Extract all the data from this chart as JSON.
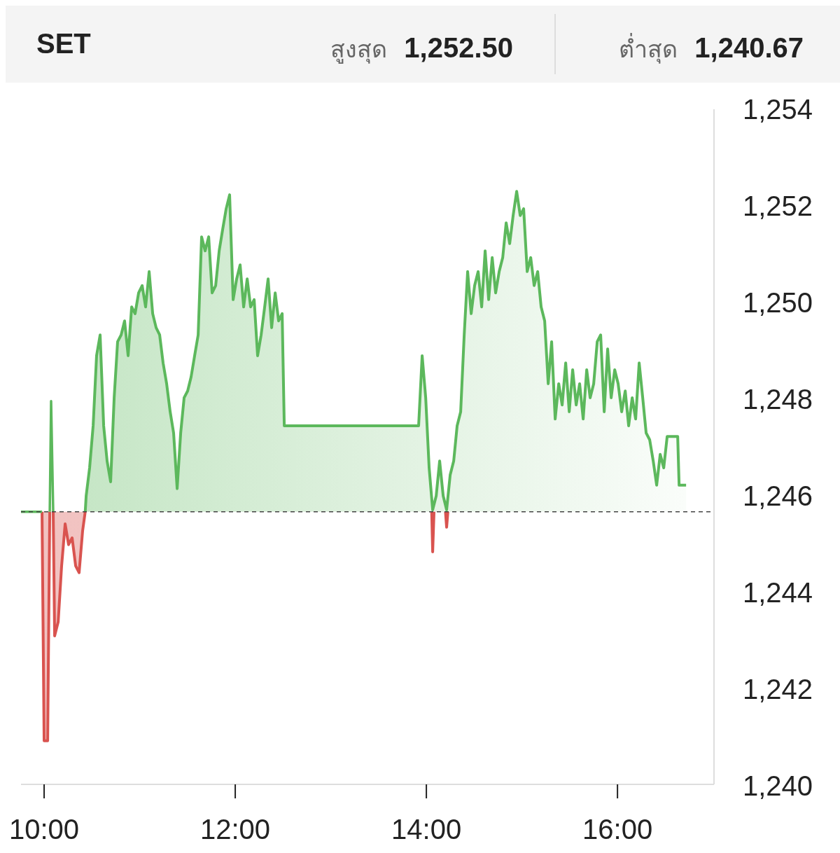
{
  "chart_data": {
    "type": "area",
    "title": "SET",
    "annotations": [
      "สูงสุด 1,252.50",
      "ต่ำสุด 1,240.67"
    ],
    "xlim": [
      9.758,
      17.01
    ],
    "ylim": [
      1240,
      1254
    ],
    "xticks": [
      {
        "value": 10,
        "label": "10:00"
      },
      {
        "value": 12,
        "label": "12:00"
      },
      {
        "value": 14,
        "label": "14:00"
      },
      {
        "value": 16,
        "label": "16:00"
      }
    ],
    "yticks": [
      {
        "value": 1240,
        "label": "1,240"
      },
      {
        "value": 1242,
        "label": "1,242"
      },
      {
        "value": 1244,
        "label": "1,244"
      },
      {
        "value": 1246,
        "label": "1,246"
      },
      {
        "value": 1248,
        "label": "1,248"
      },
      {
        "value": 1250,
        "label": "1,250"
      },
      {
        "value": 1252,
        "label": "1,252"
      },
      {
        "value": 1254,
        "label": "1,254"
      }
    ],
    "ref_lines": [
      {
        "axis": "y",
        "value": 1245.67,
        "color": "#444444",
        "line_style": "dashed"
      }
    ],
    "grid": false,
    "series": [
      {
        "color": "#d9534f",
        "x": [
          9.978,
          10.0,
          10.037,
          10.059,
          10.08,
          10.095,
          10.11,
          10.147,
          10.183,
          10.22,
          10.256,
          10.293,
          10.33,
          10.366,
          10.403,
          10.43,
          14.0,
          14.056,
          14.066,
          14.08,
          14.15,
          14.2,
          14.212,
          14.225
        ],
        "values": [
          1245.67,
          1240.93,
          1240.93,
          1245.67,
          null,
          1245.67,
          1243.1,
          1243.39,
          1244.55,
          1245.42,
          1244.99,
          1245.13,
          1244.55,
          1244.41,
          1245.28,
          1245.67,
          null,
          1245.67,
          1244.84,
          1245.67,
          null,
          1245.67,
          1245.35,
          1245.67
        ]
      },
      {
        "type": "line",
        "color": "#5cb85c",
        "x": [
          9.758,
          9.978,
          10.0,
          10.059,
          10.073,
          10.095
        ],
        "values": [
          1245.67,
          1245.67,
          null,
          1245.67,
          1247.96,
          1245.67
        ]
      },
      {
        "color": "#5cb85c",
        "x": [
          10.43,
          10.44,
          10.476,
          10.513,
          10.549,
          10.586,
          10.623,
          10.659,
          10.696,
          10.733,
          10.769,
          10.806,
          10.842,
          10.879,
          10.916,
          10.952,
          10.989,
          11.026,
          11.062,
          11.099,
          11.136,
          11.172,
          11.209,
          11.245,
          11.282,
          11.319,
          11.355,
          11.392,
          11.429,
          11.465,
          11.502,
          11.538,
          11.575,
          11.612,
          11.648,
          11.685,
          11.722,
          11.758,
          11.795,
          11.832,
          11.868,
          11.905,
          11.941,
          11.978,
          12.015,
          12.051,
          12.088,
          12.125,
          12.161,
          12.198,
          12.234,
          12.271,
          12.308,
          12.344,
          12.381,
          12.418,
          12.454,
          12.491,
          12.513,
          13.919,
          13.956,
          13.993,
          14.029,
          14.066,
          14.103,
          14.139,
          14.176,
          14.212,
          14.249,
          14.286,
          14.322,
          14.359,
          14.396,
          14.432,
          14.469,
          14.505,
          14.542,
          14.579,
          14.615,
          14.652,
          14.689,
          14.725,
          14.762,
          14.799,
          14.835,
          14.872,
          14.908,
          14.945,
          14.982,
          15.018,
          15.055,
          15.092,
          15.128,
          15.165,
          15.201,
          15.238,
          15.275,
          15.311,
          15.348,
          15.385,
          15.421,
          15.458,
          15.495,
          15.531,
          15.568,
          15.604,
          15.641,
          15.678,
          15.714,
          15.751,
          15.788,
          15.824,
          15.861,
          15.897,
          15.934,
          15.971,
          16.007,
          16.044,
          16.081,
          16.117,
          16.154,
          16.19,
          16.227,
          16.264,
          16.3,
          16.337,
          16.374,
          16.41,
          16.447,
          16.484,
          16.52,
          16.63,
          16.645,
          16.718
        ],
        "values": [
          1245.67,
          1246.0,
          1246.58,
          1247.45,
          1248.9,
          1249.33,
          1247.45,
          1246.72,
          1246.29,
          1248.03,
          1249.19,
          1249.33,
          1249.62,
          1248.9,
          1249.91,
          1249.77,
          1250.2,
          1250.35,
          1249.91,
          1250.64,
          1249.77,
          1249.48,
          1249.33,
          1248.75,
          1248.32,
          1247.74,
          1247.3,
          1246.15,
          1247.3,
          1248.03,
          1248.17,
          1248.46,
          1248.9,
          1249.33,
          1251.36,
          1251.07,
          1251.36,
          1250.2,
          1250.35,
          1251.07,
          1251.51,
          1251.94,
          1252.23,
          1250.06,
          1250.49,
          1250.78,
          1249.91,
          1250.49,
          1249.91,
          1250.06,
          1248.9,
          1249.33,
          1249.91,
          1250.49,
          1249.48,
          1250.2,
          1249.62,
          1249.77,
          1247.45,
          1247.45,
          1248.9,
          1248.03,
          1246.58,
          1245.71,
          1246.0,
          1246.72,
          1246.0,
          1245.71,
          1246.43,
          1246.72,
          1247.45,
          1247.74,
          1249.33,
          1250.64,
          1249.77,
          1250.35,
          1250.64,
          1249.91,
          1251.07,
          1250.06,
          1250.93,
          1250.2,
          1250.64,
          1250.93,
          1251.65,
          1251.22,
          1251.8,
          1252.3,
          1251.8,
          1251.94,
          1250.64,
          1250.93,
          1250.35,
          1250.64,
          1249.91,
          1249.62,
          1248.32,
          1249.19,
          1247.59,
          1248.32,
          1247.88,
          1248.75,
          1247.74,
          1248.61,
          1247.88,
          1248.32,
          1247.59,
          1248.61,
          1248.03,
          1248.32,
          1249.19,
          1249.33,
          1247.74,
          1249.04,
          1248.03,
          1248.61,
          1248.32,
          1247.74,
          1248.17,
          1247.45,
          1248.03,
          1247.59,
          1248.75,
          1248.03,
          1247.3,
          1247.16,
          1246.72,
          1246.22,
          1246.86,
          1246.58,
          1247.23,
          1247.23,
          1246.22,
          1246.22
        ]
      }
    ]
  }
}
